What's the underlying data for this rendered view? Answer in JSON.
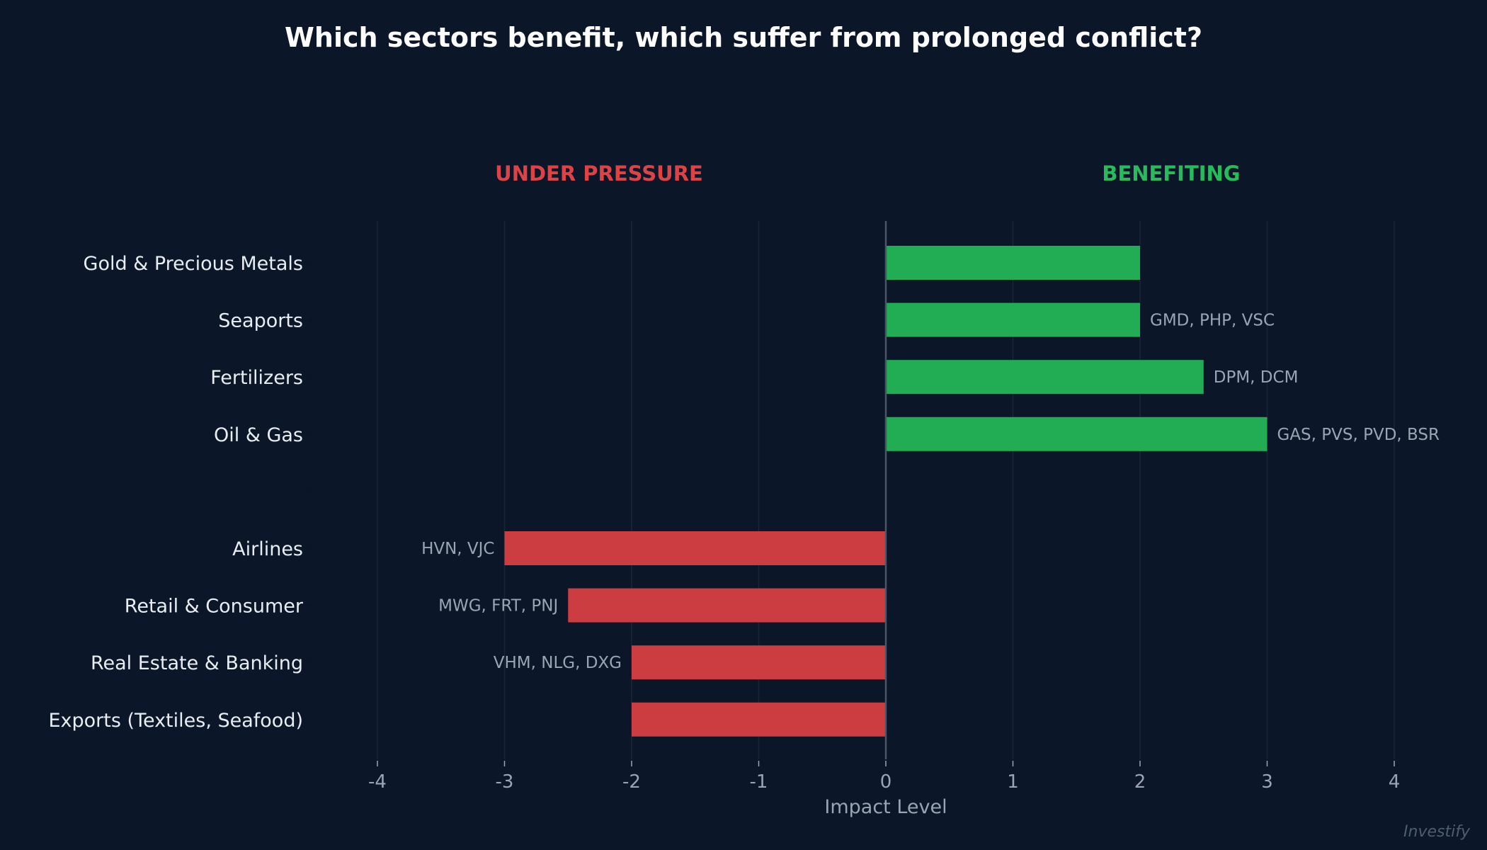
{
  "chart_data": {
    "type": "bar",
    "orientation": "horizontal",
    "title": "Which sectors benefit, which suffer from prolonged conflict?",
    "xlabel": "Impact Level",
    "ylabel": "",
    "xlim": [
      -4,
      4
    ],
    "xticks": [
      "-4",
      "-3",
      "-2",
      "-1",
      "0",
      "1",
      "2",
      "3",
      "4"
    ],
    "grid": true,
    "section_labels": {
      "negative": "UNDER PRESSURE",
      "positive": "BENEFITING"
    },
    "categories": [
      "Gold & Precious Metals",
      "Seaports",
      "Fertilizers",
      "Oil & Gas",
      "",
      "Airlines",
      "Retail & Consumer",
      "Real Estate & Banking",
      "Exports (Textiles, Seafood)"
    ],
    "values": [
      2,
      2,
      2.5,
      3,
      null,
      -3,
      -2.5,
      -2,
      -2
    ],
    "annotations": [
      "",
      "GMD, PHP, VSC",
      "DPM, DCM",
      "GAS, PVS, PVD, BSR",
      "",
      "HVN, VJC",
      "MWG, FRT, PNJ",
      "VHM, NLG, DXG",
      ""
    ],
    "colors": {
      "positive": "#22ad55",
      "negative": "#cc3d41",
      "background": "#0b1628"
    }
  },
  "watermark": "Investify"
}
